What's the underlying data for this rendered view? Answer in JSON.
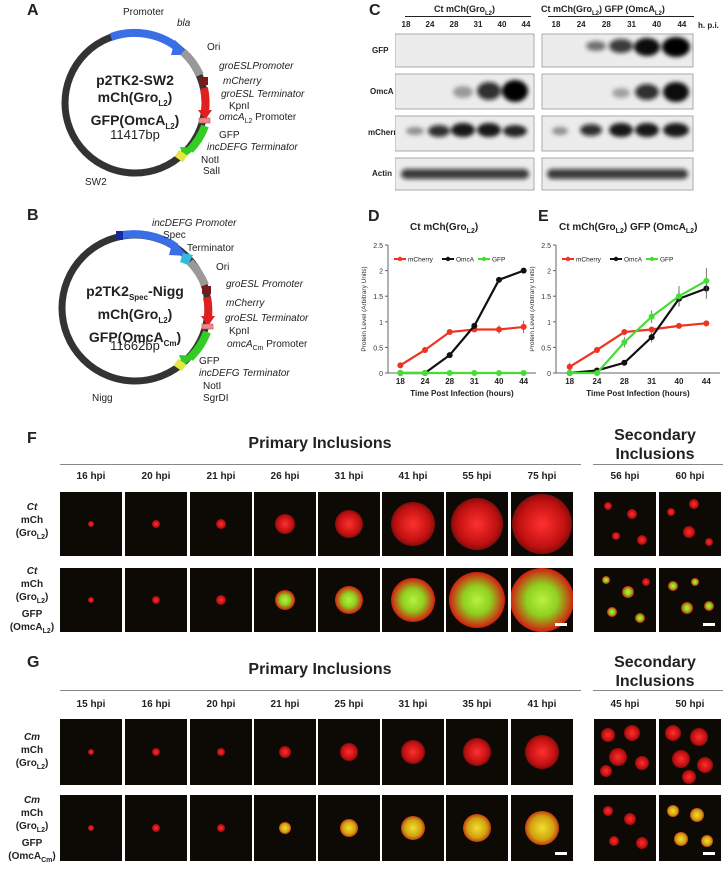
{
  "panels": {
    "A": "A",
    "B": "B",
    "C": "C",
    "D": "D",
    "E": "E",
    "F": "F",
    "G": "G"
  },
  "map_A": {
    "title1": "p2TK2-SW2",
    "title2": "mCh(Gro",
    "title2_sub": "L2",
    "title2_end": ")",
    "title3": "GFP(OmcA",
    "title3_sub": "L2",
    "title3_end": ")",
    "size": "11417bp",
    "labels": {
      "promoter": "Promoter",
      "bla": "bla",
      "ori": "Ori",
      "groesl_promoter": "groESLPromoter",
      "mcherry": "mCherry",
      "groesl_terminator": "groESL Terminator",
      "kpni": "KpnI",
      "omca_promoter": "omcA",
      "omca_promoter_sub": "L2",
      "omca_promoter_end": " Promoter",
      "gfp": "GFP",
      "incdefg_terminator": "incDEFG Terminator",
      "noti": "NotI",
      "sali": "SalI",
      "sw2": "SW2"
    }
  },
  "map_B": {
    "title1": "p2TK2",
    "title1_sub": "Spec",
    "title1_end": "-Nigg",
    "title2": "mCh(Gro",
    "title2_sub": "L2",
    "title2_end": ")",
    "title3": "GFP(OmcA",
    "title3_sub": "Cm",
    "title3_end": ")",
    "size": "11662bp",
    "labels": {
      "incdefg_promoter": "incDEFG Promoter",
      "spec": "Spec",
      "terminator": "Terminator",
      "ori": "Ori",
      "groesl_promoter": "groESL Promoter",
      "mcherry": "mCherry",
      "groesl_terminator": "groESL Terminator",
      "kpni": "KpnI",
      "omca_promoter": "omcA",
      "omca_promoter_sub": "Cm",
      "omca_promoter_end": " Promoter",
      "gfp": "GFP",
      "incdefg_terminator": "incDEFG Terminator",
      "noti": "NotI",
      "sgrdi": "SgrDI",
      "nigg": "Nigg"
    }
  },
  "gel": {
    "group1": "Ct mCh(Gro",
    "group1_sub": "L2",
    "group1_end": ")",
    "group2": "Ct mCh(Gro",
    "group2_sub": "L2",
    "group2_end": ") GFP (OmcA",
    "group2_sub2": "L2",
    "group2_end2": ")",
    "lanes1": [
      "18",
      "24",
      "28",
      "31",
      "40",
      "44"
    ],
    "lanes2": [
      "18",
      "24",
      "28",
      "31",
      "40",
      "44"
    ],
    "hpi": "h. p.i.",
    "rows": [
      "GFP",
      "OmcA",
      "mCherry",
      "Actin"
    ]
  },
  "chart_data": [
    {
      "type": "line",
      "title": "Ct mCh(Gro",
      "title_sub": "L2",
      "title_end": ")",
      "xlabel": "Time Post Infection (hours)",
      "ylabel": "Protein Level (Arbitrary Units)",
      "categories": [
        "18",
        "24",
        "28",
        "31",
        "40",
        "44"
      ],
      "yticks": [
        "0",
        "0.5",
        "1",
        "1.5",
        "2",
        "2.5"
      ],
      "ylim": [
        0,
        2.5
      ],
      "legend": [
        "mCherry",
        "OmcA",
        "GFP"
      ],
      "series": [
        {
          "name": "mCherry",
          "color": "#ee3322",
          "values": [
            0.15,
            0.45,
            0.8,
            0.85,
            0.85,
            0.9
          ],
          "err": [
            0.06,
            0.06,
            0.05,
            0.05,
            0.08,
            0.12
          ]
        },
        {
          "name": "OmcA",
          "color": "#111111",
          "values": [
            0,
            0,
            0.35,
            0.92,
            1.82,
            2.0
          ],
          "err": [
            0,
            0,
            0,
            0,
            0,
            0
          ]
        },
        {
          "name": "GFP",
          "color": "#44dd33",
          "values": [
            0,
            0,
            0,
            0,
            0,
            0
          ],
          "err": [
            0,
            0,
            0,
            0,
            0,
            0
          ]
        }
      ]
    },
    {
      "type": "line",
      "title": "Ct mCh(Gro",
      "title_sub": "L2",
      "title_end": ") GFP (OmcA",
      "title_sub2": "L2",
      "title_end2": ")",
      "xlabel": "Time Post Infection (hours)",
      "ylabel": "Protein Level (Arbitrary Units)",
      "categories": [
        "18",
        "24",
        "28",
        "31",
        "40",
        "44"
      ],
      "yticks": [
        "0",
        "0.5",
        "1",
        "1.5",
        "2",
        "2.5"
      ],
      "ylim": [
        0,
        2.5
      ],
      "legend": [
        "mCherry",
        "OmcA",
        "GFP"
      ],
      "series": [
        {
          "name": "mCherry",
          "color": "#ee3322",
          "values": [
            0.12,
            0.45,
            0.8,
            0.85,
            0.92,
            0.97
          ],
          "err": [
            0.08,
            0.06,
            0.05,
            0.05,
            0.05,
            0.05
          ]
        },
        {
          "name": "OmcA",
          "color": "#111111",
          "values": [
            0,
            0.05,
            0.2,
            0.7,
            1.45,
            1.65
          ],
          "err": [
            0,
            0,
            0,
            0.1,
            0.15,
            0.2
          ]
        },
        {
          "name": "GFP",
          "color": "#44dd33",
          "values": [
            0,
            0,
            0.6,
            1.1,
            1.5,
            1.8
          ],
          "err": [
            0,
            0,
            0.1,
            0.12,
            0.2,
            0.25
          ]
        }
      ]
    }
  ],
  "panel_F": {
    "primary": "Primary Inclusions",
    "secondary1": "Secondary",
    "secondary2": "Inclusions",
    "primary_hpi": [
      "16 hpi",
      "20 hpi",
      "21 hpi",
      "26 hpi",
      "31 hpi",
      "41 hpi",
      "55 hpi",
      "75 hpi"
    ],
    "secondary_hpi": [
      "56 hpi",
      "60 hpi"
    ],
    "row1": {
      "l1": "Ct",
      "l2": "mCh",
      "l3": "(Gro",
      "l3sub": "L2",
      "l3end": ")"
    },
    "row2": {
      "l1": "Ct",
      "l2": "mCh",
      "l3": "(Gro",
      "l3sub": "L2",
      "l3end": ")",
      "l4": "GFP",
      "l5": "(OmcA",
      "l5sub": "L2",
      "l5end": ")"
    }
  },
  "panel_G": {
    "primary": "Primary Inclusions",
    "secondary1": "Secondary",
    "secondary2": "Inclusions",
    "primary_hpi": [
      "15 hpi",
      "16 hpi",
      "20 hpi",
      "21 hpi",
      "25 hpi",
      "31 hpi",
      "35 hpi",
      "41 hpi"
    ],
    "secondary_hpi": [
      "45 hpi",
      "50 hpi"
    ],
    "row1": {
      "l1": "Cm",
      "l2": "mCh",
      "l3": "(Gro",
      "l3sub": "L2",
      "l3end": ")"
    },
    "row2": {
      "l1": "Cm",
      "l2": "mCh",
      "l3": "(Gro",
      "l3sub": "L2",
      "l3end": ")",
      "l4": "GFP",
      "l5": "(OmcA",
      "l5sub": "Cm",
      "l5end": ")"
    }
  }
}
